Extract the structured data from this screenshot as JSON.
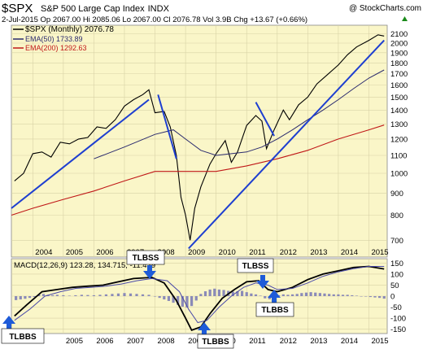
{
  "header": {
    "symbol": "$SPX",
    "name": "S&P 500 Large Cap Index",
    "exchange": "INDX",
    "copyright": "@ StockCharts.com",
    "quote": "2-Jul-2015  Op 2067.00  Hi 2085.06  Lo 2067.00  Cl 2076.78  Vol 3.9B  Chg +13.67 (+0.66%)",
    "chg_up_icon": "triangle-up-icon"
  },
  "colors": {
    "panel_bg": "#FAF6C8",
    "price": "#000000",
    "ema50": "#2B2B6E",
    "ema200": "#C01818",
    "trendline": "#1E3FD0",
    "macd_line": "#000000",
    "signal_line": "#4A4AA8",
    "histogram": "#8A8AB8",
    "arrow": "#1E5BD8"
  },
  "legend": {
    "price_label": "$SPX (Monthly) 2076.78",
    "ema50_label": "EMA(50) 1733.89",
    "ema200_label": "EMA(200) 1292.63"
  },
  "macd_legend": "MACD(12,26,9) 123.28, 134.715, -11.429",
  "annotations": [
    "TLBBS",
    "TLBSS",
    "TLBBS",
    "TLBSS",
    "TLBBS"
  ],
  "chart_data": [
    {
      "type": "line",
      "title": "S&P 500 Large Cap Index (Monthly)",
      "yscale": "log",
      "ylim": [
        640,
        2200
      ],
      "y_ticks": [
        700,
        800,
        900,
        1000,
        1100,
        1200,
        1300,
        1400,
        1500,
        1600,
        1700,
        1800,
        1900,
        2000,
        2100
      ],
      "x_ticks": [
        "2004",
        "2005",
        "2006",
        "2007",
        "2008",
        "2009",
        "2010",
        "2011",
        "2012",
        "2013",
        "2014",
        "2015"
      ],
      "x_range": [
        2003.3,
        2015.6
      ],
      "grid": true,
      "series": [
        {
          "name": "$SPX (Monthly)",
          "points": [
            [
              2003.4,
              960
            ],
            [
              2003.7,
              1000
            ],
            [
              2004.0,
              1110
            ],
            [
              2004.3,
              1120
            ],
            [
              2004.6,
              1090
            ],
            [
              2004.9,
              1180
            ],
            [
              2005.2,
              1170
            ],
            [
              2005.5,
              1200
            ],
            [
              2005.8,
              1210
            ],
            [
              2006.1,
              1280
            ],
            [
              2006.4,
              1270
            ],
            [
              2006.7,
              1330
            ],
            [
              2007.0,
              1430
            ],
            [
              2007.3,
              1480
            ],
            [
              2007.6,
              1520
            ],
            [
              2007.8,
              1560
            ],
            [
              2008.0,
              1380
            ],
            [
              2008.3,
              1390
            ],
            [
              2008.5,
              1280
            ],
            [
              2008.7,
              1100
            ],
            [
              2008.85,
              880
            ],
            [
              2009.0,
              800
            ],
            [
              2009.15,
              700
            ],
            [
              2009.3,
              830
            ],
            [
              2009.5,
              930
            ],
            [
              2009.8,
              1050
            ],
            [
              2010.0,
              1110
            ],
            [
              2010.3,
              1190
            ],
            [
              2010.5,
              1060
            ],
            [
              2010.7,
              1120
            ],
            [
              2011.0,
              1290
            ],
            [
              2011.3,
              1360
            ],
            [
              2011.5,
              1320
            ],
            [
              2011.65,
              1140
            ],
            [
              2011.9,
              1260
            ],
            [
              2012.2,
              1400
            ],
            [
              2012.4,
              1330
            ],
            [
              2012.7,
              1440
            ],
            [
              2013.0,
              1500
            ],
            [
              2013.3,
              1610
            ],
            [
              2013.6,
              1680
            ],
            [
              2014.0,
              1780
            ],
            [
              2014.3,
              1880
            ],
            [
              2014.6,
              1960
            ],
            [
              2015.0,
              2030
            ],
            [
              2015.3,
              2090
            ],
            [
              2015.5,
              2076.78
            ]
          ]
        },
        {
          "name": "EMA(50)",
          "points": [
            [
              2006.0,
              1080
            ],
            [
              2007.0,
              1150
            ],
            [
              2008.0,
              1230
            ],
            [
              2008.6,
              1260
            ],
            [
              2009.0,
              1200
            ],
            [
              2009.5,
              1130
            ],
            [
              2010.0,
              1100
            ],
            [
              2010.5,
              1110
            ],
            [
              2011.0,
              1120
            ],
            [
              2011.5,
              1150
            ],
            [
              2012.0,
              1200
            ],
            [
              2012.5,
              1260
            ],
            [
              2013.0,
              1330
            ],
            [
              2013.5,
              1400
            ],
            [
              2014.0,
              1480
            ],
            [
              2014.5,
              1570
            ],
            [
              2015.0,
              1660
            ],
            [
              2015.5,
              1733.89
            ]
          ]
        },
        {
          "name": "EMA(200)",
          "points": [
            [
              2003.3,
              800
            ],
            [
              2004.0,
              830
            ],
            [
              2005.0,
              870
            ],
            [
              2006.0,
              910
            ],
            [
              2007.0,
              960
            ],
            [
              2008.0,
              1010
            ],
            [
              2009.0,
              1010
            ],
            [
              2010.0,
              1010
            ],
            [
              2011.0,
              1040
            ],
            [
              2012.0,
              1080
            ],
            [
              2013.0,
              1130
            ],
            [
              2014.0,
              1200
            ],
            [
              2015.0,
              1260
            ],
            [
              2015.5,
              1292.63
            ]
          ]
        }
      ],
      "trendlines": [
        [
          [
            2003.3,
            830
          ],
          [
            2007.8,
            1480
          ]
        ],
        [
          [
            2008.1,
            1520
          ],
          [
            2008.7,
            1080
          ]
        ],
        [
          [
            2009.1,
            670
          ],
          [
            2015.5,
            2030
          ]
        ],
        [
          [
            2011.3,
            1460
          ],
          [
            2011.9,
            1220
          ]
        ]
      ]
    },
    {
      "type": "line",
      "title": "MACD(12,26,9) 123.28, 134.715, -11.429",
      "ylim": [
        -170,
        170
      ],
      "y_ticks": [
        -150,
        -100,
        -50,
        0,
        50,
        100,
        150
      ],
      "x_ticks": [
        "2005",
        "2006",
        "2007",
        "2008",
        "2009",
        "2010",
        "2011",
        "2012",
        "2013",
        "2014",
        "2015"
      ],
      "x_range": [
        2003.3,
        2015.6
      ],
      "series": [
        {
          "name": "MACD",
          "points": [
            [
              2003.4,
              -90
            ],
            [
              2003.8,
              -40
            ],
            [
              2004.3,
              20
            ],
            [
              2004.8,
              30
            ],
            [
              2005.3,
              40
            ],
            [
              2005.8,
              45
            ],
            [
              2006.3,
              50
            ],
            [
              2006.8,
              65
            ],
            [
              2007.3,
              80
            ],
            [
              2007.9,
              85
            ],
            [
              2008.3,
              60
            ],
            [
              2008.7,
              -20
            ],
            [
              2009.0,
              -100
            ],
            [
              2009.2,
              -155
            ],
            [
              2009.5,
              -140
            ],
            [
              2009.8,
              -80
            ],
            [
              2010.2,
              -10
            ],
            [
              2010.6,
              30
            ],
            [
              2011.0,
              65
            ],
            [
              2011.4,
              70
            ],
            [
              2011.7,
              30
            ],
            [
              2012.0,
              20
            ],
            [
              2012.5,
              40
            ],
            [
              2013.0,
              75
            ],
            [
              2013.5,
              100
            ],
            [
              2014.0,
              115
            ],
            [
              2014.5,
              130
            ],
            [
              2015.0,
              135
            ],
            [
              2015.5,
              123.28
            ]
          ]
        },
        {
          "name": "Signal",
          "points": [
            [
              2003.4,
              -110
            ],
            [
              2003.9,
              -60
            ],
            [
              2004.4,
              0
            ],
            [
              2004.9,
              20
            ],
            [
              2005.4,
              35
            ],
            [
              2005.9,
              40
            ],
            [
              2006.4,
              45
            ],
            [
              2006.9,
              55
            ],
            [
              2007.4,
              70
            ],
            [
              2007.9,
              80
            ],
            [
              2008.4,
              70
            ],
            [
              2008.8,
              20
            ],
            [
              2009.1,
              -60
            ],
            [
              2009.4,
              -120
            ],
            [
              2009.7,
              -110
            ],
            [
              2010.1,
              -50
            ],
            [
              2010.5,
              0
            ],
            [
              2010.9,
              40
            ],
            [
              2011.3,
              60
            ],
            [
              2011.7,
              50
            ],
            [
              2012.0,
              30
            ],
            [
              2012.5,
              35
            ],
            [
              2013.0,
              60
            ],
            [
              2013.5,
              90
            ],
            [
              2014.0,
              110
            ],
            [
              2014.5,
              125
            ],
            [
              2015.0,
              135
            ],
            [
              2015.5,
              134.715
            ]
          ]
        }
      ],
      "histogram": [
        [
          2003.45,
          -18
        ],
        [
          2003.6,
          -15
        ],
        [
          2003.75,
          -12
        ],
        [
          2003.9,
          -8
        ],
        [
          2004.05,
          -4
        ],
        [
          2004.2,
          6
        ],
        [
          2004.35,
          10
        ],
        [
          2004.5,
          6
        ],
        [
          2004.65,
          4
        ],
        [
          2004.8,
          6
        ],
        [
          2005.0,
          4
        ],
        [
          2005.2,
          2
        ],
        [
          2005.4,
          4
        ],
        [
          2005.6,
          6
        ],
        [
          2005.8,
          5
        ],
        [
          2006.0,
          4
        ],
        [
          2006.2,
          6
        ],
        [
          2006.4,
          8
        ],
        [
          2006.6,
          10
        ],
        [
          2006.8,
          12
        ],
        [
          2007.0,
          14
        ],
        [
          2007.2,
          12
        ],
        [
          2007.4,
          10
        ],
        [
          2007.6,
          8
        ],
        [
          2007.8,
          6
        ],
        [
          2008.0,
          -2
        ],
        [
          2008.15,
          -8
        ],
        [
          2008.3,
          -15
        ],
        [
          2008.45,
          -22
        ],
        [
          2008.6,
          -30
        ],
        [
          2008.75,
          -40
        ],
        [
          2008.9,
          -48
        ],
        [
          2009.05,
          -52
        ],
        [
          2009.2,
          -45
        ],
        [
          2009.35,
          -20
        ],
        [
          2009.5,
          10
        ],
        [
          2009.65,
          22
        ],
        [
          2009.8,
          30
        ],
        [
          2009.95,
          34
        ],
        [
          2010.1,
          30
        ],
        [
          2010.25,
          28
        ],
        [
          2010.4,
          24
        ],
        [
          2010.55,
          20
        ],
        [
          2010.7,
          22
        ],
        [
          2010.85,
          24
        ],
        [
          2011.0,
          18
        ],
        [
          2011.15,
          12
        ],
        [
          2011.3,
          8
        ],
        [
          2011.45,
          2
        ],
        [
          2011.6,
          -10
        ],
        [
          2011.75,
          -14
        ],
        [
          2011.9,
          -6
        ],
        [
          2012.05,
          4
        ],
        [
          2012.2,
          8
        ],
        [
          2012.35,
          6
        ],
        [
          2012.5,
          8
        ],
        [
          2012.65,
          10
        ],
        [
          2012.8,
          14
        ],
        [
          2012.95,
          16
        ],
        [
          2013.1,
          18
        ],
        [
          2013.25,
          16
        ],
        [
          2013.4,
          14
        ],
        [
          2013.55,
          12
        ],
        [
          2013.7,
          10
        ],
        [
          2013.85,
          8
        ],
        [
          2014.0,
          8
        ],
        [
          2014.15,
          6
        ],
        [
          2014.3,
          6
        ],
        [
          2014.45,
          4
        ],
        [
          2014.6,
          2
        ],
        [
          2014.75,
          0
        ],
        [
          2014.9,
          -2
        ],
        [
          2015.05,
          -4
        ],
        [
          2015.2,
          -6
        ],
        [
          2015.35,
          -8
        ],
        [
          2015.5,
          -11.43
        ]
      ]
    }
  ]
}
